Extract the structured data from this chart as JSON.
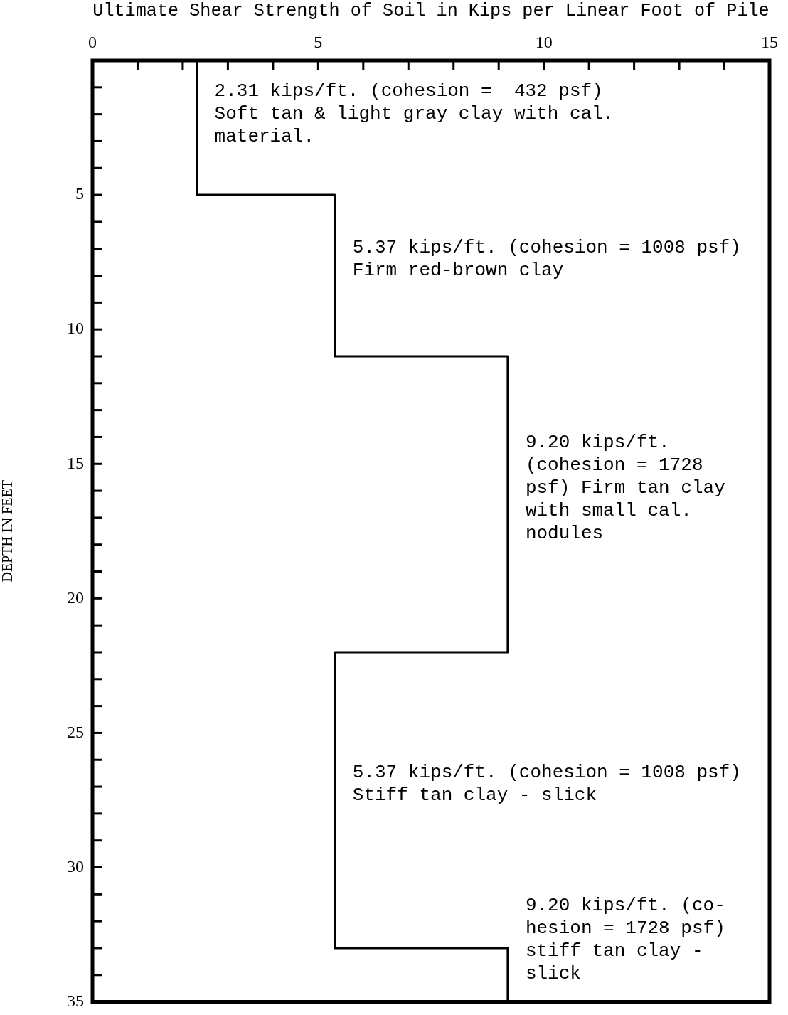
{
  "chart_data": {
    "type": "line",
    "xlabel": "Ultimate Shear Strength of Soil in Kips per Linear Foot of Pile",
    "ylabel": "DEPTH IN FEET",
    "series": [
      {
        "color": "#000000",
        "x": [
          2.31,
          2.31,
          5.37,
          5.37,
          9.2,
          9.2,
          5.37,
          5.37,
          9.2,
          9.2
        ],
        "values": [
          0,
          5,
          5,
          11,
          11,
          22,
          22,
          33,
          33,
          35
        ]
      }
    ],
    "xlim": [
      0,
      15
    ],
    "xticks": [
      0,
      {
        "value": 1,
        "label": null
      },
      {
        "value": 2,
        "label": null
      },
      {
        "value": 3,
        "label": null
      },
      {
        "value": 4,
        "label": null
      },
      5,
      {
        "value": 6,
        "label": null
      },
      {
        "value": 7,
        "label": null
      },
      {
        "value": 8,
        "label": null
      },
      {
        "value": 9,
        "label": null
      },
      10,
      {
        "value": 11,
        "label": null
      },
      {
        "value": 12,
        "label": null
      },
      {
        "value": 13,
        "label": null
      },
      {
        "value": 14,
        "label": null
      },
      15
    ],
    "ylim": [
      35,
      0
    ],
    "yticks": [
      {
        "value": 0,
        "label": null
      },
      {
        "value": 1,
        "label": null
      },
      {
        "value": 2,
        "label": null
      },
      {
        "value": 3,
        "label": null
      },
      {
        "value": 4,
        "label": null
      },
      5,
      {
        "value": 6,
        "label": null
      },
      {
        "value": 7,
        "label": null
      },
      {
        "value": 8,
        "label": null
      },
      {
        "value": 9,
        "label": null
      },
      10,
      {
        "value": 11,
        "label": null
      },
      {
        "value": 12,
        "label": null
      },
      {
        "value": 13,
        "label": null
      },
      {
        "value": 14,
        "label": null
      },
      15,
      {
        "value": 16,
        "label": null
      },
      {
        "value": 17,
        "label": null
      },
      {
        "value": 18,
        "label": null
      },
      {
        "value": 19,
        "label": null
      },
      20,
      {
        "value": 21,
        "label": null
      },
      {
        "value": 22,
        "label": null
      },
      {
        "value": 23,
        "label": null
      },
      {
        "value": 24,
        "label": null
      },
      25,
      {
        "value": 26,
        "label": null
      },
      {
        "value": 27,
        "label": null
      },
      {
        "value": 28,
        "label": null
      },
      {
        "value": 29,
        "label": null
      },
      30,
      {
        "value": 31,
        "label": null
      },
      {
        "value": 32,
        "label": null
      },
      {
        "value": 33,
        "label": null
      },
      {
        "value": 34,
        "label": null
      },
      35
    ],
    "annotations": [
      "2.31 kips/ft. (cohesion =  432 psf)\nSoft tan & light gray clay with cal.\nmaterial.",
      "5.37 kips/ft. (cohesion = 1008 psf)\nFirm red-brown clay",
      "9.20 kips/ft.\n(cohesion = 1728\npsf) Firm tan clay\nwith small cal.\nnodules",
      "5.37 kips/ft. (cohesion = 1008 psf)\nStiff tan clay - slick",
      "9.20 kips/ft. (co-\nhesion = 1728 psf)\nstiff tan clay -\nslick"
    ]
  }
}
